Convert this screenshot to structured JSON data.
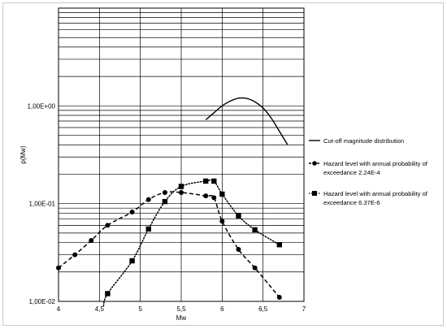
{
  "chart_data": {
    "type": "line",
    "title": "",
    "xlabel": "Mw",
    "ylabel": "p(Mw)",
    "xlim": [
      4,
      7
    ],
    "ylim": [
      0.01,
      10
    ],
    "yscale": "log",
    "grid": true,
    "x_ticks": [
      "4",
      "4,5",
      "5",
      "5,5",
      "6",
      "6,5",
      "7"
    ],
    "y_ticks": [
      "1,00E-02",
      "1,00E-01",
      "1,00E+00"
    ],
    "legend_position": "right",
    "series": [
      {
        "name": "Cut-off magnitude distribution",
        "style": "solid",
        "marker": "none",
        "x": [
          5.8,
          5.9,
          6.0,
          6.1,
          6.2,
          6.3,
          6.4,
          6.5,
          6.6,
          6.7,
          6.8
        ],
        "y": [
          0.72,
          0.85,
          1.0,
          1.12,
          1.2,
          1.19,
          1.1,
          0.95,
          0.75,
          0.55,
          0.4
        ]
      },
      {
        "name": "Hazard level with annual probability of exceedance 2.24E-4",
        "style": "dashed",
        "marker": "circle",
        "x": [
          4.0,
          4.2,
          4.4,
          4.6,
          4.9,
          5.1,
          5.3,
          5.5,
          5.8,
          5.9,
          6.0,
          6.2,
          6.4,
          6.7
        ],
        "y": [
          0.022,
          0.03,
          0.042,
          0.06,
          0.082,
          0.11,
          0.13,
          0.13,
          0.12,
          0.115,
          0.066,
          0.034,
          0.022,
          0.011
        ]
      },
      {
        "name": "Hazard level with annual probability of exceedance 6.37E-6",
        "style": "dotted",
        "marker": "square",
        "x": [
          4.55,
          4.6,
          4.9,
          5.1,
          5.3,
          5.5,
          5.8,
          5.9,
          6.0,
          6.2,
          6.4,
          6.7
        ],
        "y": [
          0.009,
          0.012,
          0.026,
          0.055,
          0.105,
          0.15,
          0.17,
          0.17,
          0.125,
          0.075,
          0.054,
          0.038
        ]
      }
    ]
  }
}
